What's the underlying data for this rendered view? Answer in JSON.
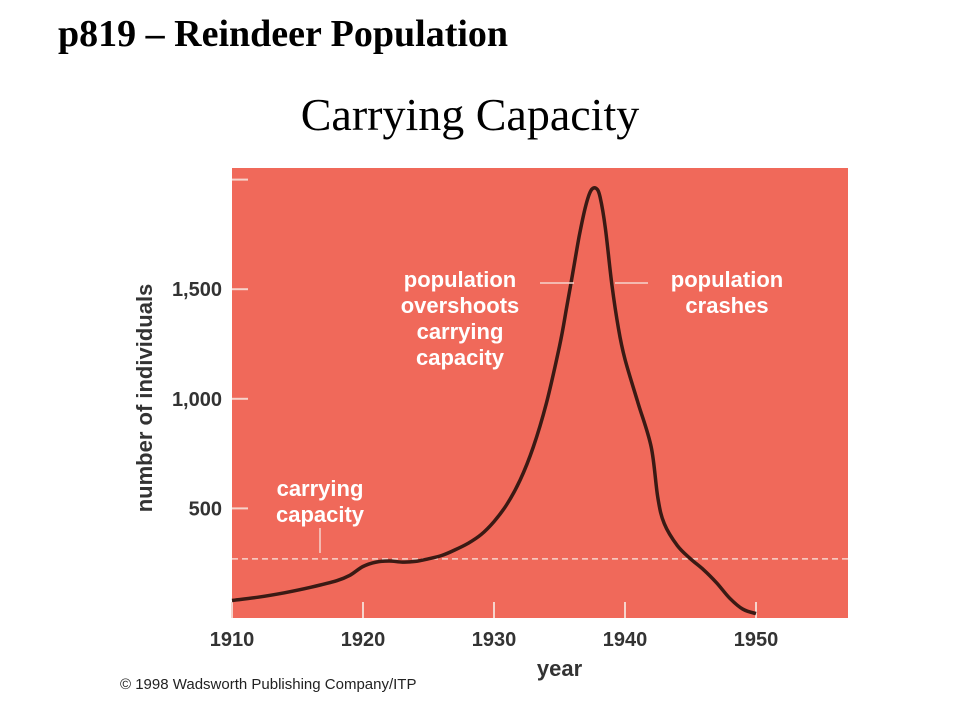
{
  "slide": {
    "title": "p819 – Reindeer Population",
    "subtitle": "Carrying Capacity",
    "copyright": "© 1998 Wadsworth Publishing Company/ITP"
  },
  "colors": {
    "plot_background": "#f0695a",
    "curve": "#3a1a14",
    "carrying_line": "#f6d4cc",
    "tick_marks": "#f6d4cc",
    "annotation_text": "#ffffff",
    "axis_text": "#333333"
  },
  "chart_data": {
    "type": "line",
    "xlabel": "year",
    "ylabel": "number of individuals",
    "xlim": [
      1910,
      1957
    ],
    "ylim": [
      0,
      2075
    ],
    "x_ticks": [
      1910,
      1920,
      1930,
      1940,
      1950
    ],
    "x_tick_labels": [
      "1910",
      "1920",
      "1930",
      "1940",
      "1950"
    ],
    "y_ticks": [
      500,
      1000,
      1500,
      2000
    ],
    "y_tick_labels": [
      "500",
      "1,000",
      "1,500",
      ""
    ],
    "grid": false,
    "series": [
      {
        "x": [
          1910,
          1912,
          1914,
          1916,
          1918,
          1919,
          1920,
          1921,
          1922,
          1923,
          1924,
          1925,
          1926,
          1927,
          1928,
          1929,
          1930,
          1931,
          1932,
          1933,
          1934,
          1935,
          1935.5,
          1936,
          1936.5,
          1937,
          1937.4,
          1937.8,
          1938.1,
          1938.5,
          1939,
          1939.5,
          1940,
          1941,
          1942,
          1942.5,
          1943,
          1944,
          1945,
          1946,
          1947,
          1948,
          1949,
          1950
        ],
        "y": [
          80,
          95,
          115,
          140,
          170,
          195,
          235,
          255,
          260,
          255,
          258,
          270,
          285,
          310,
          340,
          380,
          440,
          520,
          630,
          780,
          980,
          1240,
          1400,
          1570,
          1740,
          1880,
          1950,
          1960,
          1920,
          1780,
          1520,
          1320,
          1180,
          980,
          780,
          550,
          430,
          330,
          270,
          220,
          160,
          90,
          40,
          20
        ]
      }
    ],
    "reference_lines": [
      {
        "label": "carrying capacity",
        "y": 270,
        "style": "dashed"
      }
    ],
    "annotations": [
      {
        "lines": [
          "population",
          "overshoots",
          "carrying",
          "capacity"
        ],
        "points_to_year": 1935.5
      },
      {
        "lines": [
          "population",
          "crashes"
        ],
        "points_to_year": 1939.5
      },
      {
        "lines": [
          "carrying",
          "capacity"
        ],
        "points_to_year": 1917
      }
    ]
  }
}
